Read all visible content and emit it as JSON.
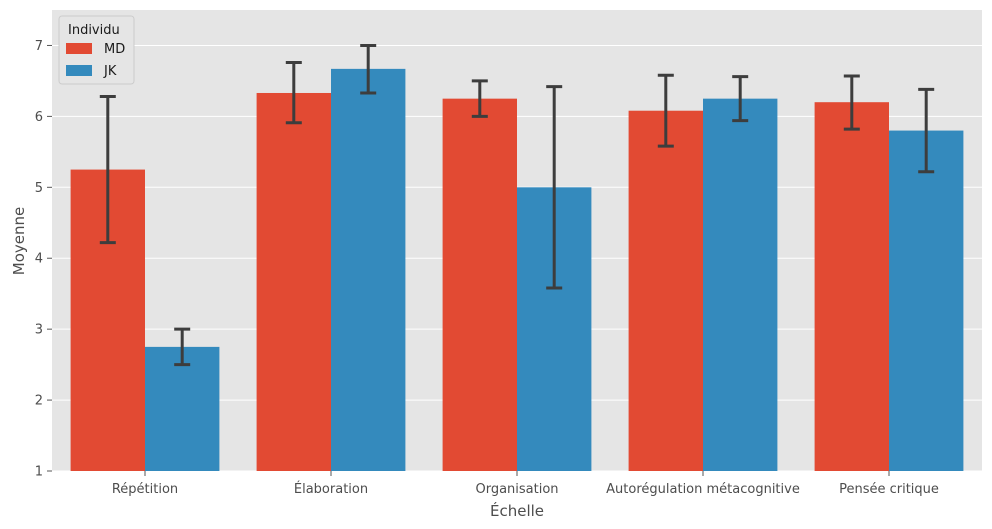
{
  "chart_data": {
    "type": "bar",
    "xlabel": "Échelle",
    "ylabel": "Moyenne",
    "ylim": [
      1,
      7.5
    ],
    "yticks": [
      1,
      2,
      3,
      4,
      5,
      6,
      7
    ],
    "grid": true,
    "legend": {
      "title": "Individu",
      "placement": "top-left"
    },
    "categories": [
      "Répétition",
      "Élaboration",
      "Organisation",
      "Autorégulation métacognitive",
      "Pensée critique"
    ],
    "series": [
      {
        "name": "MD",
        "color": "#E24A33",
        "values": [
          5.25,
          6.33,
          6.25,
          6.08,
          6.2
        ],
        "err_low": [
          4.22,
          5.91,
          6.0,
          5.58,
          5.82
        ],
        "err_high": [
          6.28,
          6.76,
          6.5,
          6.58,
          6.57
        ]
      },
      {
        "name": "JK",
        "color": "#348ABD",
        "values": [
          2.75,
          6.67,
          5.0,
          6.25,
          5.8
        ],
        "err_low": [
          2.5,
          6.33,
          3.58,
          5.94,
          5.22
        ],
        "err_high": [
          3.0,
          7.0,
          6.42,
          6.56,
          6.38
        ]
      }
    ]
  }
}
